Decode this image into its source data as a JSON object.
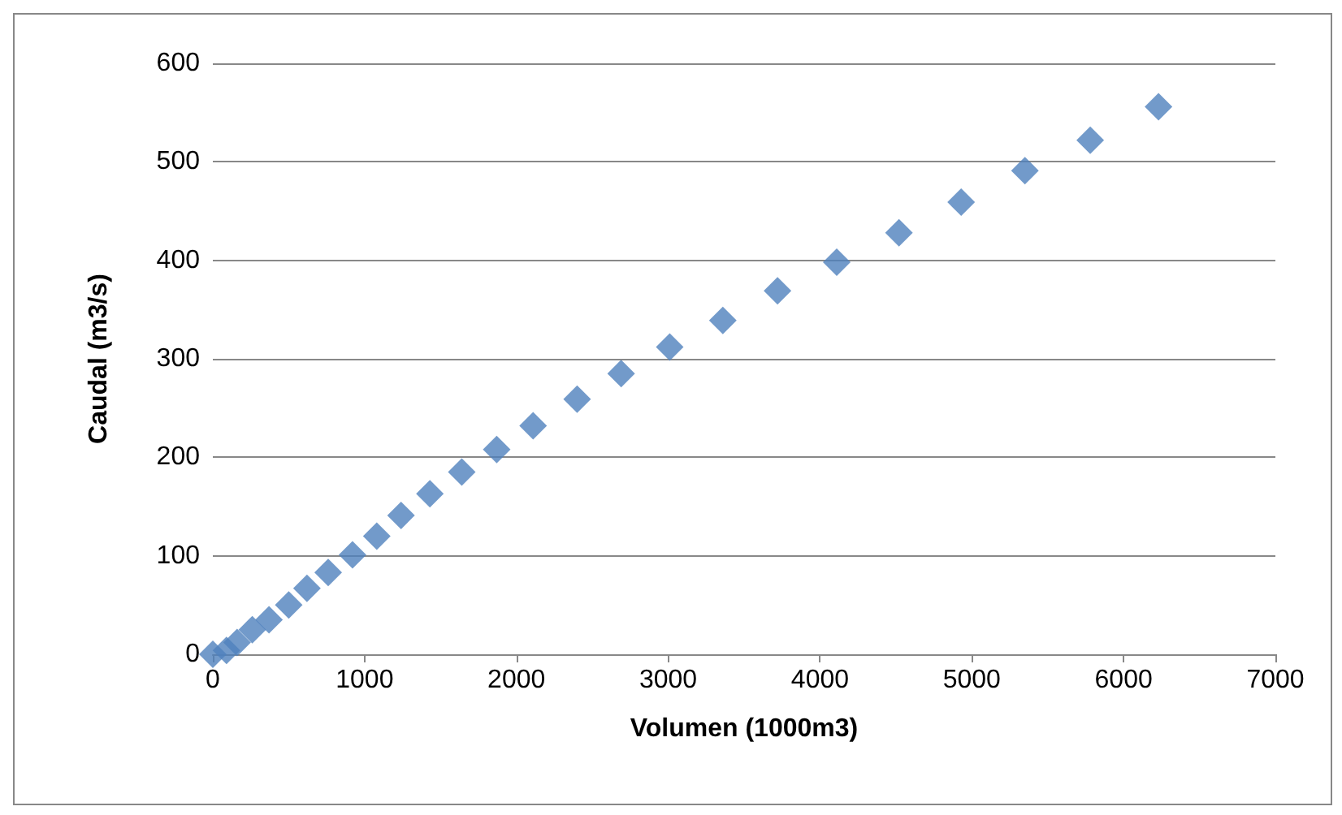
{
  "chart_data": {
    "type": "scatter",
    "xlabel": "Volumen (1000m3)",
    "ylabel": "Caudal (m3/s)",
    "x": [
      0,
      90,
      160,
      260,
      370,
      500,
      620,
      760,
      920,
      1080,
      1240,
      1430,
      1640,
      1870,
      2110,
      2400,
      2690,
      3010,
      3360,
      3720,
      4110,
      4520,
      4930,
      5350,
      5780,
      6230
    ],
    "series": [
      {
        "color": "#4f81bd",
        "values": [
          0,
          4,
          12,
          25,
          35,
          50,
          67,
          83,
          101,
          120,
          141,
          163,
          185,
          208,
          232,
          259,
          285,
          312,
          339,
          369,
          398,
          428,
          459,
          491,
          522,
          556
        ]
      }
    ],
    "xlim": [
      0,
      7000
    ],
    "xticks": [
      0,
      1000,
      2000,
      3000,
      4000,
      5000,
      6000,
      7000
    ],
    "ylim": [
      0,
      600
    ],
    "yticks": [
      0,
      100,
      200,
      300,
      400,
      500,
      600
    ],
    "grid": "y",
    "marker": "diamond"
  }
}
